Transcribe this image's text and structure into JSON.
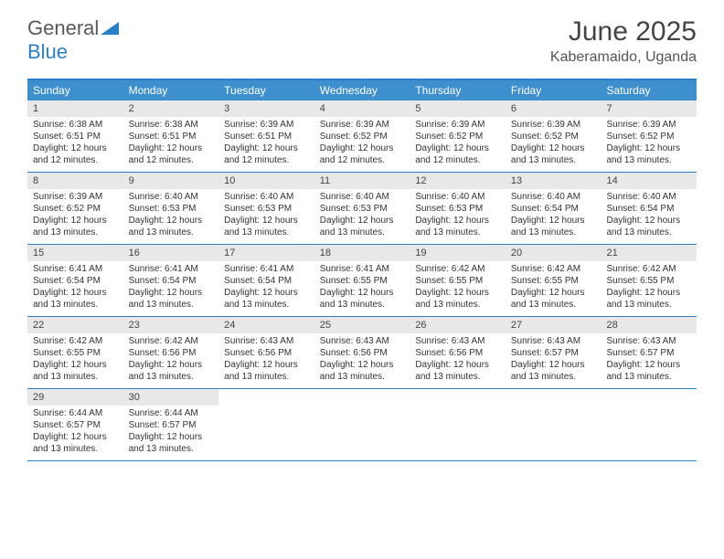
{
  "logo": {
    "text1": "General",
    "text2": "Blue"
  },
  "title": "June 2025",
  "location": "Kaberamaido, Uganda",
  "colors": {
    "header_bg": "#3d8fce",
    "border": "#2a7fc9",
    "daynum_bg": "#e8e8e8",
    "text": "#333333"
  },
  "weekdays": [
    "Sunday",
    "Monday",
    "Tuesday",
    "Wednesday",
    "Thursday",
    "Friday",
    "Saturday"
  ],
  "weeks": [
    [
      {
        "n": "1",
        "sr": "6:38 AM",
        "ss": "6:51 PM",
        "dl": "12 hours and 12 minutes."
      },
      {
        "n": "2",
        "sr": "6:38 AM",
        "ss": "6:51 PM",
        "dl": "12 hours and 12 minutes."
      },
      {
        "n": "3",
        "sr": "6:39 AM",
        "ss": "6:51 PM",
        "dl": "12 hours and 12 minutes."
      },
      {
        "n": "4",
        "sr": "6:39 AM",
        "ss": "6:52 PM",
        "dl": "12 hours and 12 minutes."
      },
      {
        "n": "5",
        "sr": "6:39 AM",
        "ss": "6:52 PM",
        "dl": "12 hours and 12 minutes."
      },
      {
        "n": "6",
        "sr": "6:39 AM",
        "ss": "6:52 PM",
        "dl": "12 hours and 13 minutes."
      },
      {
        "n": "7",
        "sr": "6:39 AM",
        "ss": "6:52 PM",
        "dl": "12 hours and 13 minutes."
      }
    ],
    [
      {
        "n": "8",
        "sr": "6:39 AM",
        "ss": "6:52 PM",
        "dl": "12 hours and 13 minutes."
      },
      {
        "n": "9",
        "sr": "6:40 AM",
        "ss": "6:53 PM",
        "dl": "12 hours and 13 minutes."
      },
      {
        "n": "10",
        "sr": "6:40 AM",
        "ss": "6:53 PM",
        "dl": "12 hours and 13 minutes."
      },
      {
        "n": "11",
        "sr": "6:40 AM",
        "ss": "6:53 PM",
        "dl": "12 hours and 13 minutes."
      },
      {
        "n": "12",
        "sr": "6:40 AM",
        "ss": "6:53 PM",
        "dl": "12 hours and 13 minutes."
      },
      {
        "n": "13",
        "sr": "6:40 AM",
        "ss": "6:54 PM",
        "dl": "12 hours and 13 minutes."
      },
      {
        "n": "14",
        "sr": "6:40 AM",
        "ss": "6:54 PM",
        "dl": "12 hours and 13 minutes."
      }
    ],
    [
      {
        "n": "15",
        "sr": "6:41 AM",
        "ss": "6:54 PM",
        "dl": "12 hours and 13 minutes."
      },
      {
        "n": "16",
        "sr": "6:41 AM",
        "ss": "6:54 PM",
        "dl": "12 hours and 13 minutes."
      },
      {
        "n": "17",
        "sr": "6:41 AM",
        "ss": "6:54 PM",
        "dl": "12 hours and 13 minutes."
      },
      {
        "n": "18",
        "sr": "6:41 AM",
        "ss": "6:55 PM",
        "dl": "12 hours and 13 minutes."
      },
      {
        "n": "19",
        "sr": "6:42 AM",
        "ss": "6:55 PM",
        "dl": "12 hours and 13 minutes."
      },
      {
        "n": "20",
        "sr": "6:42 AM",
        "ss": "6:55 PM",
        "dl": "12 hours and 13 minutes."
      },
      {
        "n": "21",
        "sr": "6:42 AM",
        "ss": "6:55 PM",
        "dl": "12 hours and 13 minutes."
      }
    ],
    [
      {
        "n": "22",
        "sr": "6:42 AM",
        "ss": "6:55 PM",
        "dl": "12 hours and 13 minutes."
      },
      {
        "n": "23",
        "sr": "6:42 AM",
        "ss": "6:56 PM",
        "dl": "12 hours and 13 minutes."
      },
      {
        "n": "24",
        "sr": "6:43 AM",
        "ss": "6:56 PM",
        "dl": "12 hours and 13 minutes."
      },
      {
        "n": "25",
        "sr": "6:43 AM",
        "ss": "6:56 PM",
        "dl": "12 hours and 13 minutes."
      },
      {
        "n": "26",
        "sr": "6:43 AM",
        "ss": "6:56 PM",
        "dl": "12 hours and 13 minutes."
      },
      {
        "n": "27",
        "sr": "6:43 AM",
        "ss": "6:57 PM",
        "dl": "12 hours and 13 minutes."
      },
      {
        "n": "28",
        "sr": "6:43 AM",
        "ss": "6:57 PM",
        "dl": "12 hours and 13 minutes."
      }
    ],
    [
      {
        "n": "29",
        "sr": "6:44 AM",
        "ss": "6:57 PM",
        "dl": "12 hours and 13 minutes."
      },
      {
        "n": "30",
        "sr": "6:44 AM",
        "ss": "6:57 PM",
        "dl": "12 hours and 13 minutes."
      },
      null,
      null,
      null,
      null,
      null
    ]
  ],
  "labels": {
    "sunrise": "Sunrise:",
    "sunset": "Sunset:",
    "daylight": "Daylight:"
  }
}
